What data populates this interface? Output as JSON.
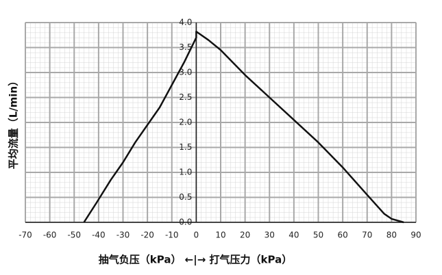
{
  "chart_data": {
    "type": "line",
    "y_label": "平均流量（L/min）",
    "x_label": "抽气负压（kPa） ←|→ 打气压力（kPa）",
    "x": [
      -46,
      -41,
      -35,
      -30,
      -25,
      -20,
      -15,
      -10,
      -5,
      0,
      0,
      5,
      10,
      15,
      20,
      30,
      40,
      50,
      60,
      70,
      77,
      80,
      85
    ],
    "series": [
      {
        "color": "#111111",
        "values": [
          0,
          0.38,
          0.85,
          1.2,
          1.6,
          1.95,
          2.3,
          2.75,
          3.2,
          3.7,
          3.82,
          3.65,
          3.45,
          3.2,
          2.95,
          2.5,
          2.05,
          1.6,
          1.1,
          0.55,
          0.17,
          0.07,
          0
        ]
      }
    ],
    "xlim": [
      -70,
      90
    ],
    "ylim": [
      0,
      4
    ],
    "xticks": [
      -70,
      -60,
      -50,
      -40,
      -30,
      -20,
      -10,
      0,
      10,
      20,
      30,
      40,
      50,
      60,
      70,
      80,
      90
    ],
    "yticks": [
      {
        "value": 0,
        "label": "0.0"
      },
      0.5,
      {
        "value": 1,
        "label": "1.0"
      },
      1.5,
      {
        "value": 2,
        "label": "2.0"
      },
      2.5,
      {
        "value": 3,
        "label": "3.0"
      },
      3.5,
      {
        "value": 4,
        "label": "4.0"
      }
    ],
    "grid": true
  }
}
